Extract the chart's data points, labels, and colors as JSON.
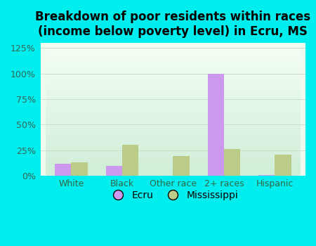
{
  "title": "Breakdown of poor residents within races\n(income below poverty level) in Ecru, MS",
  "categories": [
    "White",
    "Black",
    "Other race",
    "2+ races",
    "Hispanic"
  ],
  "ecru_values": [
    12,
    10,
    0,
    100,
    1
  ],
  "ms_values": [
    13,
    30,
    19,
    26,
    21
  ],
  "ecru_color": "#cc99ee",
  "ms_color": "#bbcc88",
  "background_color": "#00eeee",
  "plot_bg_top": "#d0eed8",
  "plot_bg_bottom": "#f0faf0",
  "title_color": "#000000",
  "ylim": [
    0,
    130
  ],
  "yticks": [
    0,
    25,
    50,
    75,
    100,
    125
  ],
  "bar_width": 0.32,
  "legend_labels": [
    "Ecru",
    "Mississippi"
  ],
  "title_fontsize": 12,
  "tick_fontsize": 9,
  "legend_fontsize": 10,
  "grid_color": "#ccddcc",
  "axis_label_color": "#336655"
}
